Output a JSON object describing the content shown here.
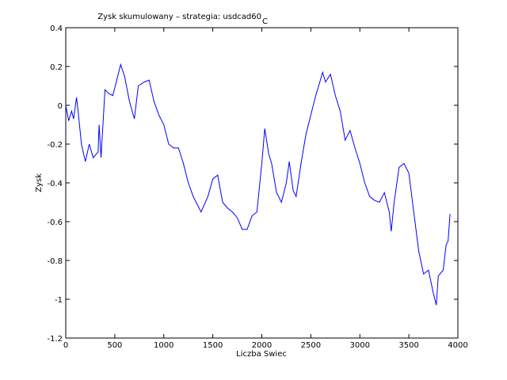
{
  "chart_data": {
    "type": "line",
    "title": "Zysk skumulowany – strategia: usdcad60",
    "title_subscript": "C",
    "x_label": "Liczba Swiec",
    "y_label": "Zysk",
    "x": [
      0,
      30,
      60,
      80,
      110,
      130,
      160,
      200,
      240,
      280,
      330,
      340,
      360,
      400,
      440,
      480,
      530,
      560,
      600,
      650,
      700,
      740,
      800,
      850,
      900,
      950,
      1000,
      1050,
      1100,
      1150,
      1200,
      1250,
      1300,
      1350,
      1380,
      1450,
      1500,
      1550,
      1600,
      1650,
      1700,
      1750,
      1800,
      1850,
      1900,
      1950,
      2000,
      2030,
      2070,
      2100,
      2150,
      2200,
      2250,
      2280,
      2320,
      2350,
      2400,
      2450,
      2500,
      2550,
      2580,
      2620,
      2650,
      2700,
      2750,
      2800,
      2850,
      2900,
      2950,
      3000,
      3050,
      3100,
      3150,
      3200,
      3250,
      3300,
      3320,
      3350,
      3400,
      3450,
      3500,
      3550,
      3600,
      3650,
      3700,
      3750,
      3780,
      3800,
      3850,
      3880,
      3900,
      3920
    ],
    "series": [
      {
        "name": "zysk",
        "color": "#0000ff",
        "values": [
          0,
          -0.08,
          -0.03,
          -0.07,
          0.04,
          -0.05,
          -0.2,
          -0.29,
          -0.2,
          -0.27,
          -0.24,
          -0.1,
          -0.27,
          0.08,
          0.06,
          0.05,
          0.15,
          0.21,
          0.15,
          0.02,
          -0.07,
          0.1,
          0.12,
          0.13,
          0.02,
          -0.05,
          -0.1,
          -0.2,
          -0.22,
          -0.22,
          -0.3,
          -0.4,
          -0.47,
          -0.52,
          -0.55,
          -0.47,
          -0.38,
          -0.36,
          -0.5,
          -0.53,
          -0.55,
          -0.58,
          -0.64,
          -0.64,
          -0.57,
          -0.55,
          -0.3,
          -0.12,
          -0.25,
          -0.3,
          -0.45,
          -0.5,
          -0.4,
          -0.29,
          -0.44,
          -0.47,
          -0.3,
          -0.15,
          -0.05,
          0.05,
          0.1,
          0.17,
          0.12,
          0.16,
          0.05,
          -0.03,
          -0.18,
          -0.13,
          -0.22,
          -0.3,
          -0.4,
          -0.47,
          -0.49,
          -0.5,
          -0.45,
          -0.55,
          -0.65,
          -0.5,
          -0.32,
          -0.3,
          -0.35,
          -0.55,
          -0.75,
          -0.87,
          -0.85,
          -0.97,
          -1.03,
          -0.88,
          -0.85,
          -0.72,
          -0.7,
          -0.56
        ]
      }
    ],
    "xlim": [
      0,
      4000
    ],
    "ylim": [
      -1.2,
      0.4
    ],
    "xticks": [
      0,
      500,
      1000,
      1500,
      2000,
      2500,
      3000,
      3500,
      4000
    ],
    "yticks": [
      -1.2,
      -1,
      -0.8,
      -0.6,
      -0.4,
      -0.2,
      0,
      0.2,
      0.4
    ]
  }
}
